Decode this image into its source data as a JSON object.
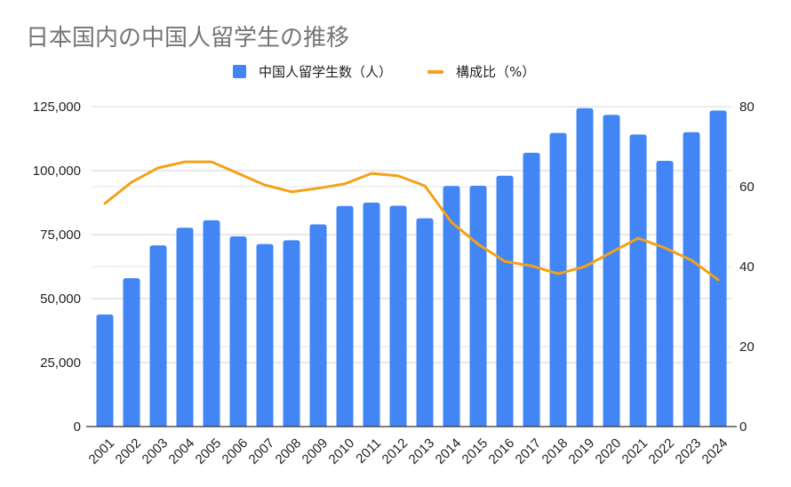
{
  "chart_data": {
    "type": "bar+line",
    "title": "日本国内の中国人留学生の推移",
    "categories": [
      "2001",
      "2002",
      "2003",
      "2004",
      "2005",
      "2006",
      "2007",
      "2008",
      "2009",
      "2010",
      "2011",
      "2012",
      "2013",
      "2014",
      "2015",
      "2016",
      "2017",
      "2018",
      "2019",
      "2020",
      "2021",
      "2022",
      "2023",
      "2024"
    ],
    "series": [
      {
        "name": "中国人留学生数（人）",
        "type": "bar",
        "axis": "left",
        "color": "#4285f4",
        "values": [
          43800,
          58000,
          70800,
          77700,
          80600,
          74300,
          71300,
          72800,
          79000,
          86200,
          87500,
          86300,
          81400,
          94000,
          94100,
          98000,
          107000,
          114700,
          124400,
          121800,
          114100,
          103800,
          115000,
          123500
        ]
      },
      {
        "name": "構成比（%）",
        "type": "line",
        "axis": "right",
        "color": "#f4a118",
        "values": [
          55.8,
          61.1,
          64.7,
          66.2,
          66.2,
          63.3,
          60.4,
          58.7,
          59.6,
          60.7,
          63.3,
          62.7,
          60.2,
          51.1,
          45.6,
          41.3,
          40.2,
          38.2,
          40.0,
          43.6,
          47.1,
          44.7,
          41.6,
          36.7
        ]
      }
    ],
    "left_axis": {
      "ylim": [
        0,
        125000
      ],
      "ticks": [
        0,
        25000,
        50000,
        75000,
        100000,
        125000
      ],
      "tick_labels": [
        "0",
        "25,000",
        "50,000",
        "75,000",
        "100,000",
        "125,000"
      ]
    },
    "right_axis": {
      "ylim": [
        0,
        80
      ],
      "ticks": [
        0,
        20,
        40,
        60,
        80
      ],
      "tick_labels": [
        "0",
        "20",
        "40",
        "60",
        "80"
      ]
    },
    "xlabel": "",
    "ylabel": "",
    "grid": true,
    "legend_position": "top"
  }
}
